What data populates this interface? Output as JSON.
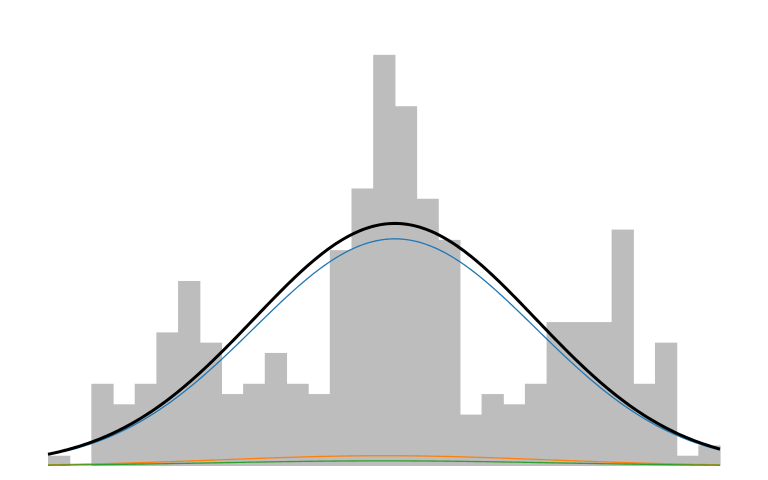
{
  "chart_data": {
    "type": "bar",
    "title": "",
    "xlabel": "",
    "ylabel": "",
    "grid": false,
    "legend": "none",
    "axes_visible": false,
    "xlim": [
      0,
      31
    ],
    "ylim": [
      0,
      21.5
    ],
    "histogram": {
      "bin_width": 1,
      "start": 0,
      "color": "#bdbdbd",
      "counts": [
        1,
        0,
        8,
        6,
        8,
        13,
        18,
        12,
        7,
        8,
        11,
        8,
        7,
        21,
        27,
        40,
        35,
        26,
        22,
        5,
        7,
        6,
        8,
        14,
        14,
        14,
        23,
        8,
        12,
        1,
        2
      ]
    },
    "series": [
      {
        "color": "#000000",
        "kind": "normal-curve",
        "mean": 16.0,
        "sd": 6.5,
        "peak": 23.6,
        "line_width": 3
      },
      {
        "color": "#1f77b4",
        "kind": "normal-curve",
        "mean": 16.0,
        "sd": 6.5,
        "peak": 22.1,
        "line_width": 1.3
      },
      {
        "color": "#ff7f0e",
        "kind": "normal-curve",
        "mean": 15.5,
        "sd": 7.5,
        "peak": 1.0,
        "line_width": 1.3
      },
      {
        "color": "#2ca02c",
        "kind": "normal-curve",
        "mean": 15.5,
        "sd": 8.0,
        "peak": 0.5,
        "line_width": 1.3
      }
    ]
  }
}
